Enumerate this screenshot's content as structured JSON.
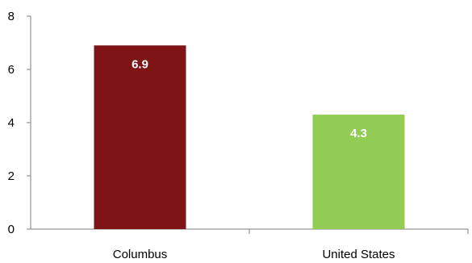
{
  "chart_data": {
    "type": "bar",
    "categories": [
      "Columbus",
      "United States"
    ],
    "values": [
      6.9,
      4.3
    ],
    "data_labels": [
      "6.9",
      "4.3"
    ],
    "bar_colors": [
      "#7f1416",
      "#92cc55"
    ],
    "title": "",
    "xlabel": "",
    "ylabel": "",
    "ylim": [
      0,
      8
    ],
    "yticks": [
      0,
      2,
      4,
      6,
      8
    ],
    "ytick_labels": [
      "0",
      "2",
      "4",
      "6",
      "8"
    ],
    "grid": false,
    "legend": "none"
  },
  "colors": {
    "axis": "#7f7f7f",
    "text": "#000000",
    "data_label": "#ffffff"
  }
}
